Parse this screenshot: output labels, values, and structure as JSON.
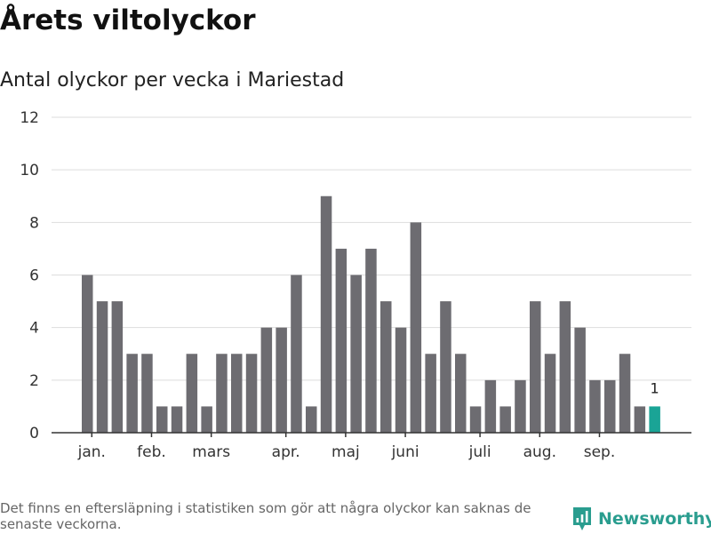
{
  "title": "Årets viltolyckor",
  "subtitle": "Antal olyckor per vecka i Mariestad",
  "footnote": "Det finns en eftersläpning i statistiken som gör att några olyckor kan saknas de senaste veckorna.",
  "brand": {
    "name": "Newsworthy",
    "icon": "newsworthy-logo-icon"
  },
  "colors": {
    "bar": "#6d6c71",
    "highlight": "#1aa496",
    "grid": "#dddddd",
    "axis": "#333333"
  },
  "chart_data": {
    "type": "bar",
    "title": "Årets viltolyckor",
    "subtitle": "Antal olyckor per vecka i Mariestad",
    "xlabel": "",
    "ylabel": "",
    "ylim": [
      0,
      12
    ],
    "yticks": [
      0,
      2,
      4,
      6,
      8,
      10,
      12
    ],
    "grid": true,
    "values": [
      6,
      5,
      5,
      3,
      3,
      1,
      1,
      3,
      1,
      3,
      3,
      3,
      4,
      4,
      6,
      1,
      9,
      7,
      6,
      7,
      5,
      4,
      8,
      3,
      5,
      3,
      1,
      2,
      1,
      2,
      5,
      3,
      5,
      4,
      2,
      2,
      3,
      1,
      1
    ],
    "highlight_index": 38,
    "highlight_label": "1",
    "month_labels": [
      {
        "label": "jan.",
        "bar_index": 0.3
      },
      {
        "label": "feb.",
        "bar_index": 4.3
      },
      {
        "label": "mars",
        "bar_index": 8.3
      },
      {
        "label": "apr.",
        "bar_index": 13.3
      },
      {
        "label": "maj",
        "bar_index": 17.3
      },
      {
        "label": "juni",
        "bar_index": 21.3
      },
      {
        "label": "juli",
        "bar_index": 26.3
      },
      {
        "label": "aug.",
        "bar_index": 30.3
      },
      {
        "label": "sep.",
        "bar_index": 34.3
      }
    ]
  }
}
